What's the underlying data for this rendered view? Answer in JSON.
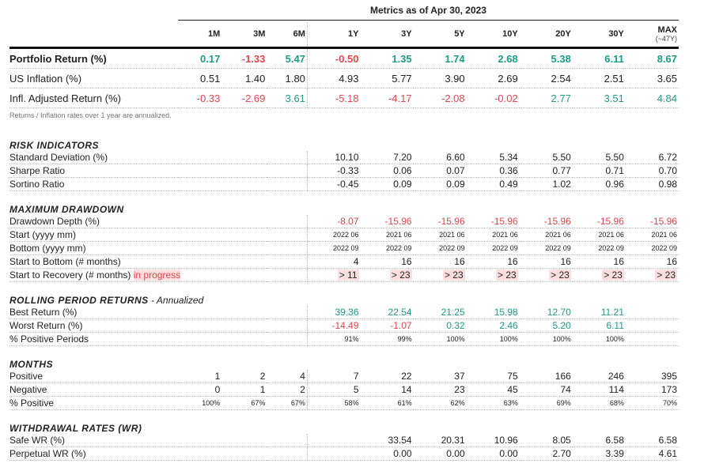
{
  "title": "Metrics as of Apr 30, 2023",
  "columns": [
    "1M",
    "3M",
    "6M",
    "1Y",
    "3Y",
    "5Y",
    "10Y",
    "20Y",
    "30Y",
    "MAX"
  ],
  "max_sub": "(~47Y)",
  "colors": {
    "positive": "#1f9a88",
    "negative": "#e0474c",
    "highlight": "#fcdede"
  },
  "top_rows": [
    {
      "label": "Portfolio Return (%)",
      "bold": true,
      "signed": true,
      "values": [
        "0.17",
        "-1.33",
        "5.47",
        "-0.50",
        "1.35",
        "1.74",
        "2.68",
        "5.38",
        "6.11",
        "8.67"
      ]
    },
    {
      "label": "US Inflation (%)",
      "values": [
        "0.51",
        "1.40",
        "1.80",
        "4.93",
        "5.77",
        "3.90",
        "2.69",
        "2.54",
        "2.51",
        "3.65"
      ]
    },
    {
      "label": "Infl. Adjusted Return (%)",
      "signed": true,
      "values": [
        "-0.33",
        "-2.69",
        "3.61",
        "-5.18",
        "-4.17",
        "-2.08",
        "-0.02",
        "2.77",
        "3.51",
        "4.84"
      ]
    }
  ],
  "note": "Returns / Inflation rates over 1 year are annualized.",
  "sections": [
    {
      "title": "RISK INDICATORS",
      "rows": [
        {
          "label": "Standard Deviation (%)",
          "values": [
            "",
            "",
            "",
            "10.10",
            "7.20",
            "6.60",
            "5.34",
            "5.50",
            "5.50",
            "6.72"
          ]
        },
        {
          "label": "Sharpe Ratio",
          "values": [
            "",
            "",
            "",
            "-0.33",
            "0.06",
            "0.07",
            "0.36",
            "0.77",
            "0.71",
            "0.70"
          ]
        },
        {
          "label": "Sortino Ratio",
          "values": [
            "",
            "",
            "",
            "-0.45",
            "0.09",
            "0.09",
            "0.49",
            "1.02",
            "0.96",
            "0.98"
          ]
        }
      ]
    },
    {
      "title": "MAXIMUM DRAWDOWN",
      "rows": [
        {
          "label": "Drawdown Depth (%)",
          "signed": true,
          "values": [
            "",
            "",
            "",
            "-8.07",
            "-15.96",
            "-15.96",
            "-15.96",
            "-15.96",
            "-15.96",
            "-15.96"
          ]
        },
        {
          "label": "Start (yyyy mm)",
          "small": true,
          "values": [
            "",
            "",
            "",
            "2022 06",
            "2021 06",
            "2021 06",
            "2021 06",
            "2021 06",
            "2021 06",
            "2021 06"
          ]
        },
        {
          "label": "Bottom (yyyy mm)",
          "small": true,
          "values": [
            "",
            "",
            "",
            "2022 09",
            "2022 09",
            "2022 09",
            "2022 09",
            "2022 09",
            "2022 09",
            "2022 09"
          ]
        },
        {
          "label": "Start to Bottom (# months)",
          "values": [
            "",
            "",
            "",
            "4",
            "16",
            "16",
            "16",
            "16",
            "16",
            "16"
          ]
        },
        {
          "label": "Start to Recovery (# months)",
          "label_extra": "in progress",
          "highlight": true,
          "values": [
            "",
            "",
            "",
            "> 11",
            "> 23",
            "> 23",
            "> 23",
            "> 23",
            "> 23",
            "> 23"
          ]
        }
      ]
    },
    {
      "title": "ROLLING PERIOD RETURNS",
      "subtitle": " - Annualized",
      "rows": [
        {
          "label": "Best Return (%)",
          "signed": true,
          "values": [
            "",
            "",
            "",
            "39.36",
            "22.54",
            "21.25",
            "15.98",
            "12.70",
            "11.21",
            ""
          ]
        },
        {
          "label": "Worst Return (%)",
          "signed": true,
          "values": [
            "",
            "",
            "",
            "-14.49",
            "-1.07",
            "0.32",
            "2.46",
            "5.20",
            "6.11",
            ""
          ]
        },
        {
          "label": "% Positive Periods",
          "small": true,
          "values": [
            "",
            "",
            "",
            "91%",
            "99%",
            "100%",
            "100%",
            "100%",
            "100%",
            ""
          ]
        }
      ]
    },
    {
      "title": "MONTHS",
      "rows": [
        {
          "label": "Positive",
          "values": [
            "1",
            "2",
            "4",
            "7",
            "22",
            "37",
            "75",
            "166",
            "246",
            "395"
          ]
        },
        {
          "label": "Negative",
          "values": [
            "0",
            "1",
            "2",
            "5",
            "14",
            "23",
            "45",
            "74",
            "114",
            "173"
          ]
        },
        {
          "label": "% Positive",
          "small": true,
          "values": [
            "100%",
            "67%",
            "67%",
            "58%",
            "61%",
            "62%",
            "63%",
            "69%",
            "68%",
            "70%"
          ]
        }
      ]
    },
    {
      "title": "WITHDRAWAL RATES (WR)",
      "rows": [
        {
          "label": "Safe WR (%)",
          "values": [
            "",
            "",
            "",
            "",
            "33.54",
            "20.31",
            "10.96",
            "8.05",
            "6.58",
            "6.58"
          ]
        },
        {
          "label": "Perpetual WR (%)",
          "values": [
            "",
            "",
            "",
            "",
            "0.00",
            "0.00",
            "0.00",
            "2.70",
            "3.39",
            "4.61"
          ]
        }
      ]
    }
  ]
}
